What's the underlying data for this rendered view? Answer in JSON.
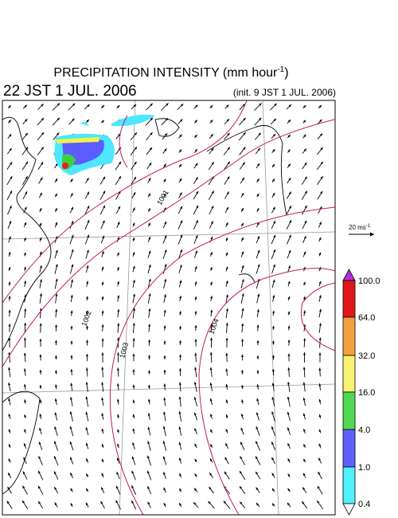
{
  "header": {
    "title": {
      "text": "PRECIPITATION INTENSITY (mm hour",
      "superscript": "-1",
      "close": ")"
    },
    "valid_time": "22 JST 1 JUL. 2006",
    "init_time": "(init. 9 JST 1 JUL. 2006)"
  },
  "map": {
    "isobar_labels": [
      "1001",
      "1002",
      "1003",
      "1004"
    ]
  },
  "wind_reference": {
    "text": "20 ms",
    "superscript": "-1"
  },
  "legend": {
    "levels": [
      "0.4",
      "1.0",
      "4.0",
      "16.0",
      "32.0",
      "64.0",
      "100.0"
    ]
  }
}
